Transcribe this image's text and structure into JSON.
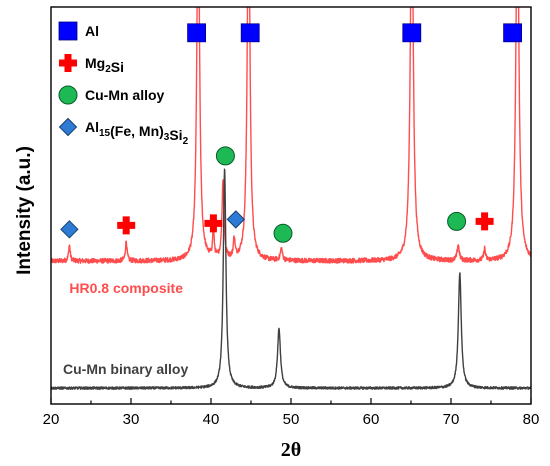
{
  "chart_data": {
    "type": "line",
    "title": "",
    "xlabel": "2θ",
    "ylabel": "Intensity (a.u.)",
    "xlim": [
      20,
      80
    ],
    "ylim": [
      0,
      1
    ],
    "xticks": [
      20,
      30,
      40,
      50,
      60,
      70,
      80
    ],
    "y_tick_labels": false,
    "grid": false,
    "colors": {
      "hr08": "#ff4d4d",
      "binary": "#404040",
      "al": "#0000ff",
      "mg2si": "#ff0000",
      "cumn": "#1db954",
      "alfemnsi": "#2e7bd6"
    },
    "series": [
      {
        "name": "HR0.8 composite",
        "baseline": 0.36,
        "noise": 0.006,
        "peaks": [
          {
            "x": 22.3,
            "h": 0.04,
            "w": 0.12
          },
          {
            "x": 29.4,
            "h": 0.05,
            "w": 0.12
          },
          {
            "x": 38.4,
            "h": 0.95,
            "w": 0.2
          },
          {
            "x": 40.3,
            "h": 0.07,
            "w": 0.12
          },
          {
            "x": 41.5,
            "h": 0.2,
            "w": 0.15
          },
          {
            "x": 42.9,
            "h": 0.05,
            "w": 0.12
          },
          {
            "x": 44.7,
            "h": 0.95,
            "w": 0.2
          },
          {
            "x": 48.8,
            "h": 0.03,
            "w": 0.15
          },
          {
            "x": 65.1,
            "h": 0.95,
            "w": 0.22
          },
          {
            "x": 70.9,
            "h": 0.04,
            "w": 0.15
          },
          {
            "x": 74.2,
            "h": 0.03,
            "w": 0.12
          },
          {
            "x": 78.3,
            "h": 0.95,
            "w": 0.22
          }
        ]
      },
      {
        "name": "Cu-Mn binary alloy",
        "baseline": 0.04,
        "noise": 0.003,
        "peaks": [
          {
            "x": 41.7,
            "h": 0.55,
            "w": 0.2
          },
          {
            "x": 48.5,
            "h": 0.15,
            "w": 0.22
          },
          {
            "x": 71.1,
            "h": 0.29,
            "w": 0.22
          }
        ]
      }
    ],
    "series_labels": [
      {
        "text": "HR0.8 composite",
        "x": 22.3,
        "y": 0.28
      },
      {
        "text": "Cu-Mn binary alloy",
        "x": 21.5,
        "y": 0.075
      }
    ],
    "markers": [
      {
        "phase": "al",
        "x": [
          38.2,
          44.9,
          65.1,
          77.7
        ],
        "y": [
          0.935,
          0.935,
          0.935,
          0.935
        ]
      },
      {
        "phase": "mg2si",
        "x": [
          29.4,
          40.3,
          74.2
        ],
        "y": [
          0.45,
          0.455,
          0.46
        ]
      },
      {
        "phase": "cumn",
        "x": [
          41.8,
          49.0,
          70.7
        ],
        "y": [
          0.625,
          0.43,
          0.46
        ]
      },
      {
        "phase": "alfemnsi",
        "x": [
          22.3,
          43.1
        ],
        "y": [
          0.44,
          0.465
        ]
      }
    ],
    "legend": {
      "placement": "top-left",
      "items": [
        {
          "phase": "al",
          "label": "Al"
        },
        {
          "phase": "mg2si",
          "label": "Mg",
          "sub": "2",
          "label2": "Si"
        },
        {
          "phase": "cumn",
          "label": "Cu-Mn alloy"
        },
        {
          "phase": "alfemnsi",
          "label": "Al",
          "sub": "15",
          "label2": "(Fe, Mn)",
          "sub2": "3",
          "label3": "Si",
          "sub3": "2"
        }
      ]
    }
  }
}
